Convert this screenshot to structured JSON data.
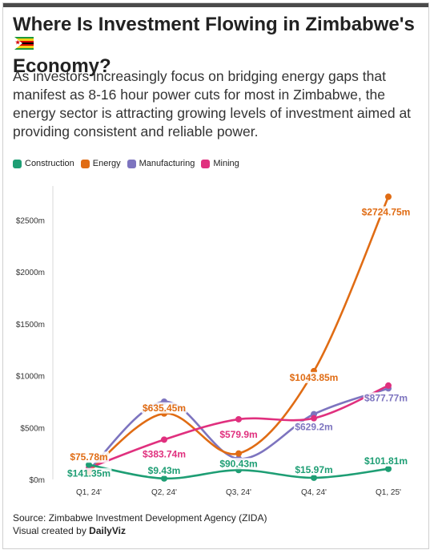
{
  "title": "Where Is Investment Flowing in Zimbabwe's",
  "title_line2": "Economy?",
  "flag_icon": "zimbabwe-flag-icon",
  "subtitle": "As investors increasingly focus on bridging energy gaps that manifest as 8-16 hour power cuts for most in Zimbabwe, the energy sector is attracting growing levels of investment aimed at providing consistent and reliable power.",
  "source": "Source: Zimbabwe Investment Development Agency (ZIDA)",
  "credit_prefix": "Visual created by ",
  "credit_brand": "DailyViz",
  "chart_data": {
    "type": "line",
    "categories": [
      "Q1, 24'",
      "Q2, 24'",
      "Q3, 24'",
      "Q4, 24'",
      "Q1, 25'"
    ],
    "ylim": [
      0,
      2800
    ],
    "yticks": [
      0,
      500,
      1000,
      1500,
      2000,
      2500
    ],
    "ytick_labels": [
      "$0m",
      "$500m",
      "$1000m",
      "$1500m",
      "$2000m",
      "$2500m"
    ],
    "legend_position": "top-left",
    "grid": false,
    "series": [
      {
        "name": "Construction",
        "color": "#1e9e74",
        "values": [
          141.35,
          9.43,
          90.43,
          15.97,
          101.81
        ],
        "labels": [
          "$141.35m",
          "$9.43m",
          "$90.43m",
          "$15.97m",
          "$101.81m"
        ]
      },
      {
        "name": "Energy",
        "color": "#e06c14",
        "values": [
          75.78,
          635.45,
          250,
          1043.85,
          2724.75
        ],
        "labels": [
          "$75.78m",
          "$635.45m",
          "",
          "$1043.85m",
          "$2724.75m"
        ]
      },
      {
        "name": "Manufacturing",
        "color": "#7d74bf",
        "values": [
          90,
          750,
          200,
          629.2,
          877.77
        ],
        "labels": [
          "",
          "",
          "",
          "$629.2m",
          "$877.77m"
        ]
      },
      {
        "name": "Mining",
        "color": "#e0307e",
        "values": [
          110,
          383.74,
          579.9,
          590,
          905
        ],
        "labels": [
          "",
          "$383.74m",
          "$579.9m",
          "",
          ""
        ]
      }
    ]
  }
}
